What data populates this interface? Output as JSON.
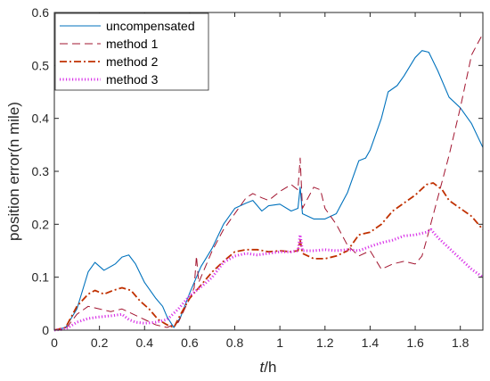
{
  "chart_data": {
    "type": "line",
    "xlabel_italic": "t",
    "xlabel_rest": "/h",
    "ylabel": "position error(n mile)",
    "xlim": [
      0,
      1.9
    ],
    "ylim": [
      0,
      0.6
    ],
    "x_ticks": [
      0,
      0.2,
      0.4,
      0.6,
      0.8,
      1,
      1.2,
      1.4,
      1.6,
      1.8
    ],
    "x_tick_labels": [
      "0",
      "0.2",
      "0.4",
      "0.6",
      "0.8",
      "1",
      "1.2",
      "1.4",
      "1.6",
      "1.8"
    ],
    "y_ticks": [
      0,
      0.1,
      0.2,
      0.3,
      0.4,
      0.5,
      0.6
    ],
    "y_tick_labels": [
      "0",
      "0.1",
      "0.2",
      "0.3",
      "0.4",
      "0.5",
      "0.6"
    ],
    "legend_position": "top-left",
    "series": [
      {
        "name": "uncompensated",
        "color": "#0072BD",
        "style": "solid",
        "points": [
          [
            0,
            0
          ],
          [
            0.05,
            0.005
          ],
          [
            0.1,
            0.04
          ],
          [
            0.15,
            0.11
          ],
          [
            0.18,
            0.128
          ],
          [
            0.22,
            0.113
          ],
          [
            0.27,
            0.125
          ],
          [
            0.3,
            0.138
          ],
          [
            0.33,
            0.142
          ],
          [
            0.36,
            0.125
          ],
          [
            0.4,
            0.09
          ],
          [
            0.45,
            0.06
          ],
          [
            0.48,
            0.045
          ],
          [
            0.5,
            0.025
          ],
          [
            0.53,
            0.005
          ],
          [
            0.56,
            0.025
          ],
          [
            0.6,
            0.07
          ],
          [
            0.65,
            0.12
          ],
          [
            0.7,
            0.155
          ],
          [
            0.75,
            0.2
          ],
          [
            0.8,
            0.23
          ],
          [
            0.85,
            0.24
          ],
          [
            0.88,
            0.245
          ],
          [
            0.92,
            0.225
          ],
          [
            0.95,
            0.235
          ],
          [
            1,
            0.238
          ],
          [
            1.05,
            0.225
          ],
          [
            1.08,
            0.23
          ],
          [
            1.09,
            0.27
          ],
          [
            1.1,
            0.22
          ],
          [
            1.15,
            0.21
          ],
          [
            1.2,
            0.21
          ],
          [
            1.25,
            0.22
          ],
          [
            1.3,
            0.26
          ],
          [
            1.35,
            0.32
          ],
          [
            1.38,
            0.325
          ],
          [
            1.4,
            0.34
          ],
          [
            1.45,
            0.4
          ],
          [
            1.48,
            0.45
          ],
          [
            1.52,
            0.462
          ],
          [
            1.55,
            0.48
          ],
          [
            1.6,
            0.515
          ],
          [
            1.63,
            0.528
          ],
          [
            1.66,
            0.525
          ],
          [
            1.7,
            0.49
          ],
          [
            1.75,
            0.44
          ],
          [
            1.8,
            0.42
          ],
          [
            1.85,
            0.39
          ],
          [
            1.9,
            0.345
          ]
        ]
      },
      {
        "name": "method 1",
        "color": "#A2142F",
        "style": "dashed",
        "points": [
          [
            0,
            0
          ],
          [
            0.05,
            0.002
          ],
          [
            0.1,
            0.03
          ],
          [
            0.15,
            0.045
          ],
          [
            0.2,
            0.04
          ],
          [
            0.25,
            0.035
          ],
          [
            0.3,
            0.04
          ],
          [
            0.35,
            0.03
          ],
          [
            0.4,
            0.02
          ],
          [
            0.45,
            0.01
          ],
          [
            0.5,
            0.005
          ],
          [
            0.55,
            0.015
          ],
          [
            0.6,
            0.06
          ],
          [
            0.62,
            0.08
          ],
          [
            0.63,
            0.14
          ],
          [
            0.64,
            0.09
          ],
          [
            0.7,
            0.15
          ],
          [
            0.75,
            0.19
          ],
          [
            0.8,
            0.22
          ],
          [
            0.85,
            0.25
          ],
          [
            0.88,
            0.258
          ],
          [
            0.92,
            0.25
          ],
          [
            0.95,
            0.245
          ],
          [
            1,
            0.262
          ],
          [
            1.05,
            0.275
          ],
          [
            1.08,
            0.265
          ],
          [
            1.09,
            0.325
          ],
          [
            1.1,
            0.23
          ],
          [
            1.15,
            0.27
          ],
          [
            1.18,
            0.265
          ],
          [
            1.2,
            0.23
          ],
          [
            1.25,
            0.2
          ],
          [
            1.3,
            0.16
          ],
          [
            1.35,
            0.14
          ],
          [
            1.4,
            0.15
          ],
          [
            1.45,
            0.115
          ],
          [
            1.5,
            0.125
          ],
          [
            1.55,
            0.13
          ],
          [
            1.6,
            0.125
          ],
          [
            1.63,
            0.14
          ],
          [
            1.65,
            0.17
          ],
          [
            1.7,
            0.25
          ],
          [
            1.75,
            0.33
          ],
          [
            1.8,
            0.42
          ],
          [
            1.85,
            0.52
          ],
          [
            1.9,
            0.56
          ]
        ]
      },
      {
        "name": "method 2",
        "color": "#C03000",
        "style": "dashdot",
        "points": [
          [
            0,
            0
          ],
          [
            0.05,
            0.005
          ],
          [
            0.1,
            0.045
          ],
          [
            0.15,
            0.068
          ],
          [
            0.18,
            0.075
          ],
          [
            0.22,
            0.068
          ],
          [
            0.26,
            0.075
          ],
          [
            0.3,
            0.08
          ],
          [
            0.34,
            0.075
          ],
          [
            0.38,
            0.055
          ],
          [
            0.42,
            0.04
          ],
          [
            0.46,
            0.02
          ],
          [
            0.5,
            0.01
          ],
          [
            0.53,
            0.005
          ],
          [
            0.56,
            0.03
          ],
          [
            0.6,
            0.06
          ],
          [
            0.63,
            0.075
          ],
          [
            0.66,
            0.09
          ],
          [
            0.7,
            0.11
          ],
          [
            0.75,
            0.13
          ],
          [
            0.8,
            0.148
          ],
          [
            0.85,
            0.152
          ],
          [
            0.9,
            0.152
          ],
          [
            0.95,
            0.148
          ],
          [
            1,
            0.15
          ],
          [
            1.05,
            0.148
          ],
          [
            1.08,
            0.15
          ],
          [
            1.09,
            0.17
          ],
          [
            1.1,
            0.145
          ],
          [
            1.15,
            0.135
          ],
          [
            1.2,
            0.135
          ],
          [
            1.25,
            0.14
          ],
          [
            1.3,
            0.15
          ],
          [
            1.35,
            0.18
          ],
          [
            1.4,
            0.185
          ],
          [
            1.45,
            0.2
          ],
          [
            1.5,
            0.225
          ],
          [
            1.55,
            0.24
          ],
          [
            1.6,
            0.255
          ],
          [
            1.65,
            0.275
          ],
          [
            1.68,
            0.278
          ],
          [
            1.72,
            0.265
          ],
          [
            1.75,
            0.245
          ],
          [
            1.8,
            0.23
          ],
          [
            1.85,
            0.215
          ],
          [
            1.9,
            0.19
          ]
        ]
      },
      {
        "name": "method 3",
        "color": "#D936E8",
        "style": "dotted",
        "points": [
          [
            0,
            0
          ],
          [
            0.05,
            0.002
          ],
          [
            0.1,
            0.015
          ],
          [
            0.15,
            0.022
          ],
          [
            0.2,
            0.025
          ],
          [
            0.25,
            0.027
          ],
          [
            0.3,
            0.03
          ],
          [
            0.33,
            0.02
          ],
          [
            0.36,
            0.015
          ],
          [
            0.4,
            0.013
          ],
          [
            0.45,
            0.015
          ],
          [
            0.5,
            0.02
          ],
          [
            0.55,
            0.04
          ],
          [
            0.6,
            0.065
          ],
          [
            0.63,
            0.075
          ],
          [
            0.66,
            0.085
          ],
          [
            0.7,
            0.1
          ],
          [
            0.75,
            0.128
          ],
          [
            0.8,
            0.14
          ],
          [
            0.85,
            0.145
          ],
          [
            0.9,
            0.142
          ],
          [
            0.95,
            0.145
          ],
          [
            1,
            0.148
          ],
          [
            1.05,
            0.148
          ],
          [
            1.08,
            0.15
          ],
          [
            1.09,
            0.18
          ],
          [
            1.1,
            0.15
          ],
          [
            1.15,
            0.15
          ],
          [
            1.2,
            0.152
          ],
          [
            1.25,
            0.15
          ],
          [
            1.3,
            0.152
          ],
          [
            1.35,
            0.15
          ],
          [
            1.4,
            0.158
          ],
          [
            1.45,
            0.165
          ],
          [
            1.5,
            0.17
          ],
          [
            1.55,
            0.178
          ],
          [
            1.6,
            0.18
          ],
          [
            1.65,
            0.185
          ],
          [
            1.67,
            0.19
          ],
          [
            1.7,
            0.175
          ],
          [
            1.75,
            0.155
          ],
          [
            1.8,
            0.135
          ],
          [
            1.85,
            0.115
          ],
          [
            1.9,
            0.1
          ]
        ]
      }
    ]
  }
}
